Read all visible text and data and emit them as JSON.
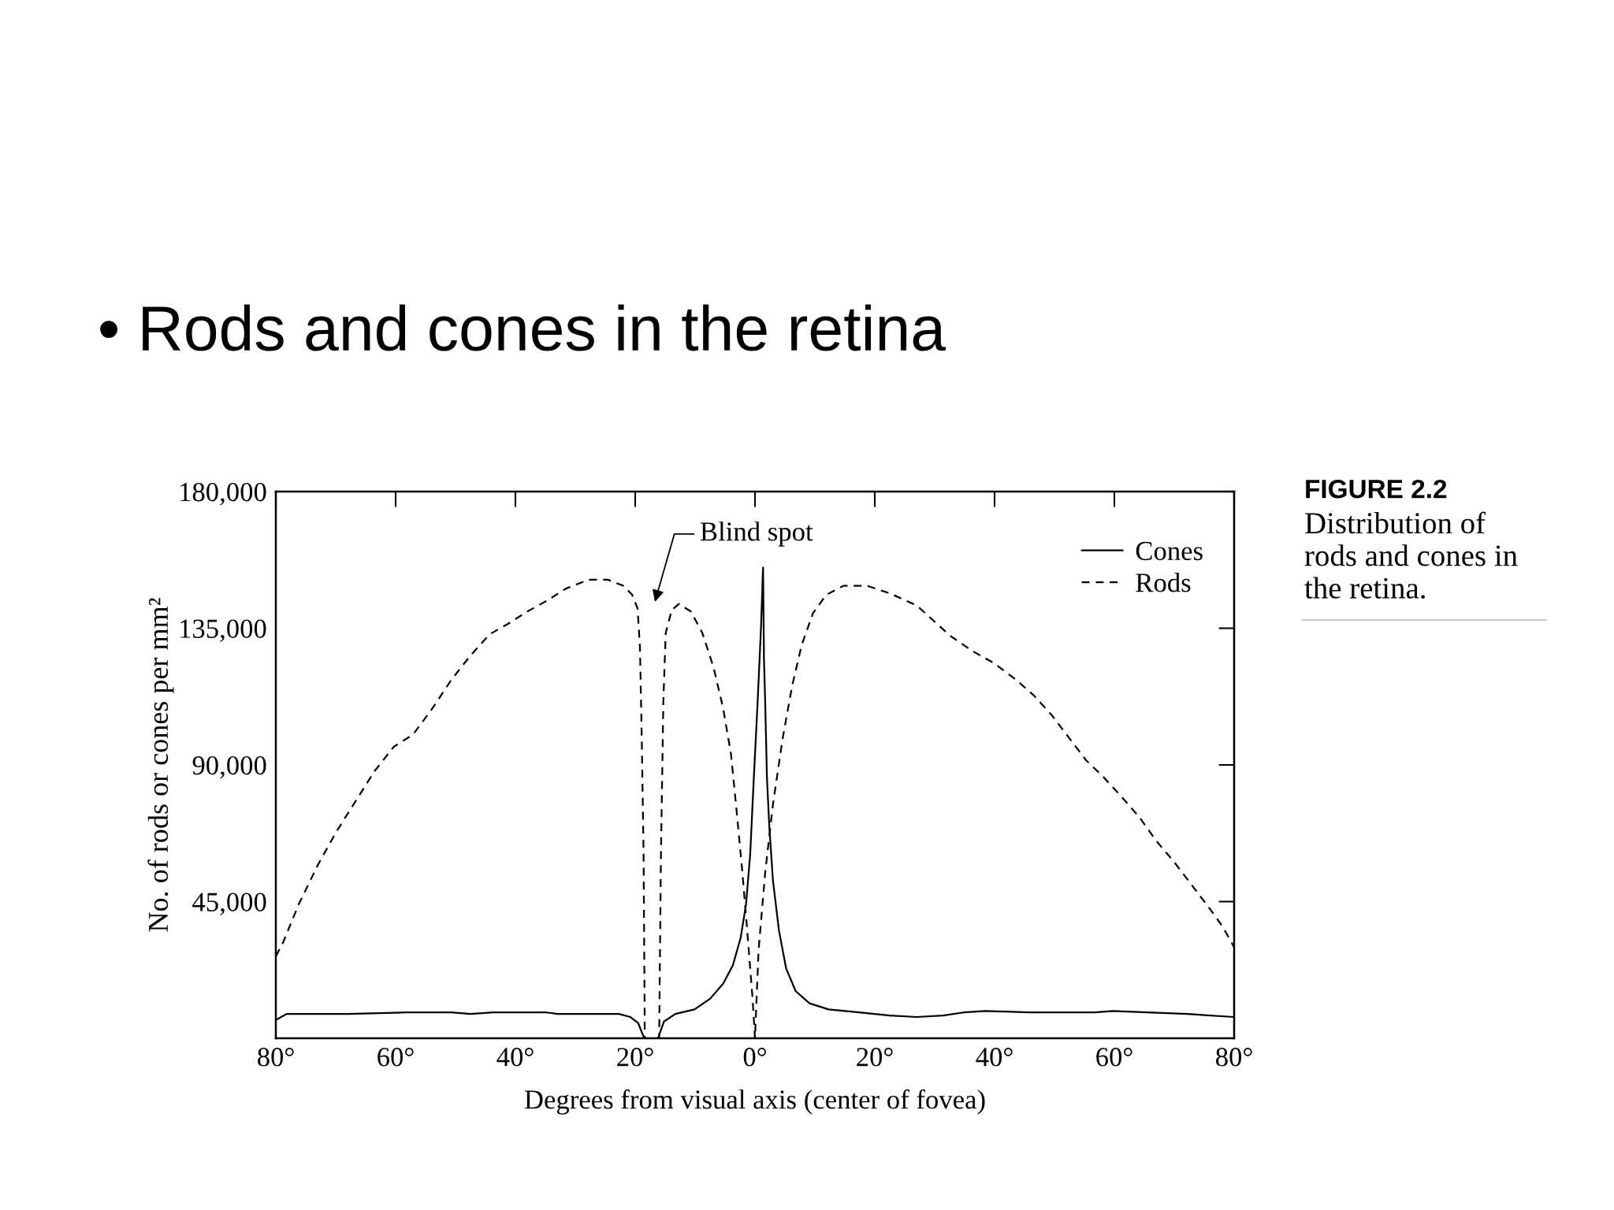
{
  "chart_data": {
    "type": "line",
    "title": "• Rods and cones in the retina",
    "xlabel": "Degrees from visual axis (center of fovea)",
    "ylabel": "No. of rods or cones per mm²",
    "annotations": [
      "Blind spot",
      "FIGURE 2.2",
      "Distribution of\nrods and cones in\nthe retina."
    ],
    "xlim": [
      -80,
      80
    ],
    "xticks": [
      {
        "value": -80,
        "label": "80°"
      },
      {
        "value": -60,
        "label": "60°"
      },
      {
        "value": -40,
        "label": "40°"
      },
      {
        "value": -20,
        "label": "20°"
      },
      {
        "value": 0,
        "label": "0°"
      },
      {
        "value": 20,
        "label": "20°"
      },
      {
        "value": 40,
        "label": "40°"
      },
      {
        "value": 60,
        "label": "60°"
      },
      {
        "value": 80,
        "label": "80°"
      }
    ],
    "ylim": [
      0,
      180000
    ],
    "yticks": [
      {
        "value": 45000,
        "label": "45,000"
      },
      {
        "value": 90000,
        "label": "90,000"
      },
      {
        "value": 135000,
        "label": "135,000"
      },
      {
        "value": 180000,
        "label": "180,000"
      }
    ],
    "legend": "top right",
    "series": [
      {
        "name": "Cones",
        "color": "#000000",
        "line_style": "solid",
        "x": [
          -80,
          -78.2,
          -68,
          -58.4,
          -50.7,
          -47.5,
          -43.7,
          -34.8,
          -32.9,
          -22.7,
          -20.8,
          -19.5,
          -18.5,
          -16.2,
          -15.2,
          -13.3,
          -10.1,
          -7.5,
          -5.3,
          -3.7,
          -2.4,
          -1.5,
          -0.8,
          -0.2,
          0.45,
          1.0,
          1.35,
          1.5,
          1.7,
          2.0,
          2.4,
          3.0,
          4.0,
          5.2,
          6.8,
          9.1,
          12.3,
          17.4,
          22.5,
          27.0,
          31.4,
          34.8,
          38.5,
          45.8,
          56.8,
          59.7,
          72.2,
          80
        ],
        "values": [
          6000,
          8000,
          8000,
          8500,
          8500,
          8000,
          8500,
          8500,
          8000,
          8000,
          7000,
          5000,
          0,
          0,
          5500,
          8000,
          9500,
          13000,
          18000,
          24000,
          33000,
          44000,
          60500,
          85500,
          111000,
          135000,
          155000,
          125000,
          111000,
          85500,
          69500,
          52000,
          35500,
          23000,
          15500,
          11500,
          9500,
          8500,
          7500,
          7000,
          7500,
          8500,
          9000,
          8500,
          8500,
          9000,
          8000,
          7000
        ]
      },
      {
        "name": "Rods",
        "color": "#000000",
        "line_style": "dashed",
        "x": [
          -80,
          -78.8,
          -76.2,
          -73.0,
          -69.9,
          -66.7,
          -63.5,
          -60.3,
          -57.1,
          -53.9,
          -50.7,
          -47.5,
          -44.3,
          -41.2,
          -38.0,
          -34.8,
          -31.6,
          -27.8,
          -24.6,
          -22.0,
          -20.5,
          -19.6,
          -19.2,
          -18.9,
          -18.6,
          -18.4,
          -16.0,
          -15.7,
          -15.3,
          -14.9,
          -13.9,
          -12.7,
          -10.7,
          -8.8,
          -6.9,
          -5.3,
          -4.0,
          -3.1,
          -2.1,
          -1.3,
          -0.4,
          0,
          0.6,
          1.7,
          3.0,
          4.6,
          6.2,
          7.8,
          9.7,
          11.9,
          14.8,
          18.7,
          22.5,
          27.0,
          32.6,
          36.3,
          39.9,
          43.6,
          46.5,
          49.5,
          52.4,
          55.3,
          58.2,
          61.2,
          64.1,
          67.0,
          70.0,
          72.9,
          75.8,
          78.0,
          80
        ],
        "values": [
          27000,
          31500,
          44000,
          57000,
          68000,
          78000,
          88000,
          96000,
          100000,
          108500,
          118000,
          126000,
          133000,
          136500,
          140500,
          144000,
          148000,
          151000,
          151000,
          149000,
          146000,
          141500,
          128500,
          98000,
          60500,
          0,
          0,
          60500,
          111000,
          133500,
          141000,
          143000,
          140500,
          133500,
          122000,
          108500,
          93500,
          75500,
          54500,
          35500,
          13000,
          0,
          29000,
          54500,
          77000,
          98500,
          116000,
          129500,
          140000,
          146000,
          149000,
          149000,
          146500,
          142500,
          132500,
          127500,
          123500,
          118000,
          113000,
          106500,
          99000,
          91500,
          86000,
          79500,
          73000,
          65000,
          58000,
          50500,
          43000,
          37000,
          30000
        ]
      }
    ]
  }
}
